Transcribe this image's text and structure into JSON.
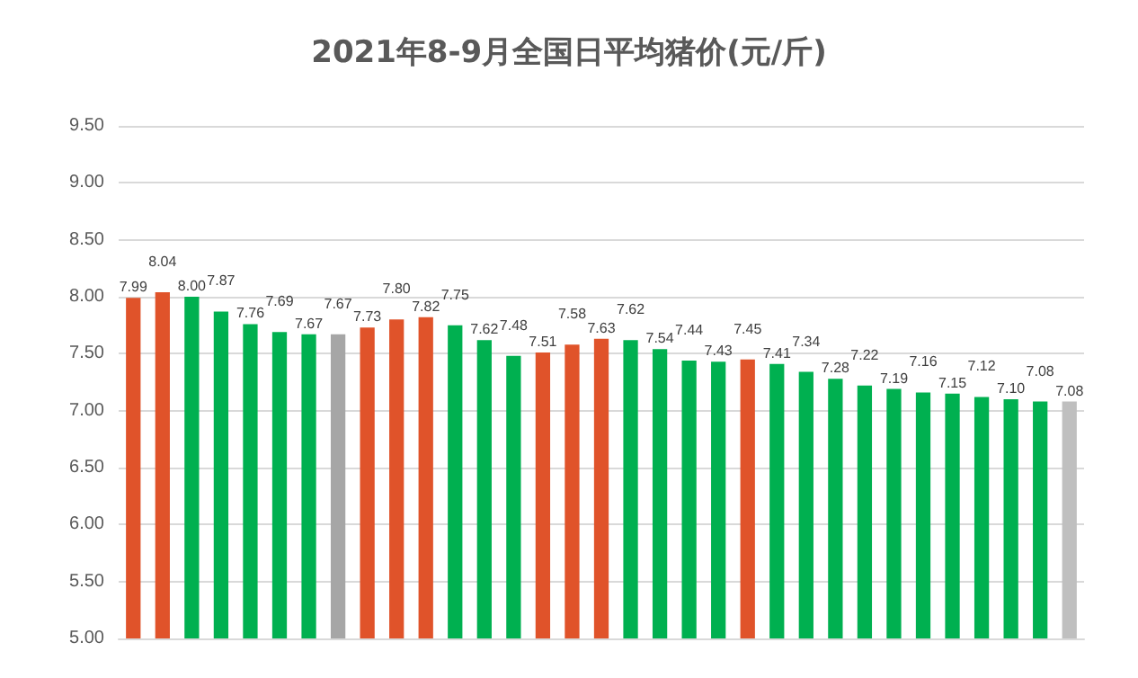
{
  "chart_data": {
    "type": "bar",
    "title": "2021年8-9月全国日平均猪价(元/斤)",
    "categories": [
      null,
      null,
      null,
      null,
      null,
      null,
      null,
      null,
      null,
      null,
      null,
      null,
      null,
      null,
      null,
      null,
      null,
      null,
      null,
      null,
      null,
      null,
      null,
      null,
      null,
      null,
      null,
      null,
      null,
      null,
      null,
      null,
      null
    ],
    "values": [
      7.99,
      8.04,
      8.0,
      7.87,
      7.76,
      7.69,
      7.67,
      7.67,
      7.73,
      7.8,
      7.82,
      7.75,
      7.62,
      7.48,
      7.51,
      7.58,
      7.63,
      7.62,
      7.54,
      7.44,
      7.43,
      7.45,
      7.41,
      7.34,
      7.28,
      7.22,
      7.19,
      7.16,
      7.15,
      7.12,
      7.1,
      7.08,
      7.08
    ],
    "value_labels": [
      "7.99",
      "8.04",
      "8.00",
      "7.87",
      "7.76",
      "7.69",
      "7.67",
      "7.67",
      "7.73",
      "7.80",
      "7.82",
      "7.75",
      "7.62",
      "7.48",
      "7.51",
      "7.58",
      "7.63",
      "7.62",
      "7.54",
      "7.44",
      "7.43",
      "7.45",
      "7.41",
      "7.34",
      "7.28",
      "7.22",
      "7.19",
      "7.16",
      "7.15",
      "7.12",
      "7.10",
      "7.08",
      "7.08"
    ],
    "colors": [
      "#e0532a",
      "#e0532a",
      "#00b050",
      "#00b050",
      "#00b050",
      "#00b050",
      "#00b050",
      "#a6a6a6",
      "#e0532a",
      "#e0532a",
      "#e0532a",
      "#00b050",
      "#00b050",
      "#00b050",
      "#e0532a",
      "#e0532a",
      "#e0532a",
      "#00b050",
      "#00b050",
      "#00b050",
      "#00b050",
      "#e0532a",
      "#00b050",
      "#00b050",
      "#00b050",
      "#00b050",
      "#00b050",
      "#00b050",
      "#00b050",
      "#00b050",
      "#00b050",
      "#00b050",
      "#bfbfbf"
    ],
    "ylim": [
      5,
      9.5
    ],
    "yticks": [
      {
        "value": 5,
        "label": "5.00"
      },
      {
        "value": 5.5,
        "label": "5.50"
      },
      {
        "value": 6,
        "label": "6.00"
      },
      {
        "value": 6.5,
        "label": "6.50"
      },
      {
        "value": 7,
        "label": "7.00"
      },
      {
        "value": 7.5,
        "label": "7.50"
      },
      {
        "value": 8,
        "label": "8.00"
      },
      {
        "value": 8.5,
        "label": "8.50"
      },
      {
        "value": 9,
        "label": "9.00"
      },
      {
        "value": 9.5,
        "label": "9.50"
      }
    ],
    "grid": "y"
  }
}
